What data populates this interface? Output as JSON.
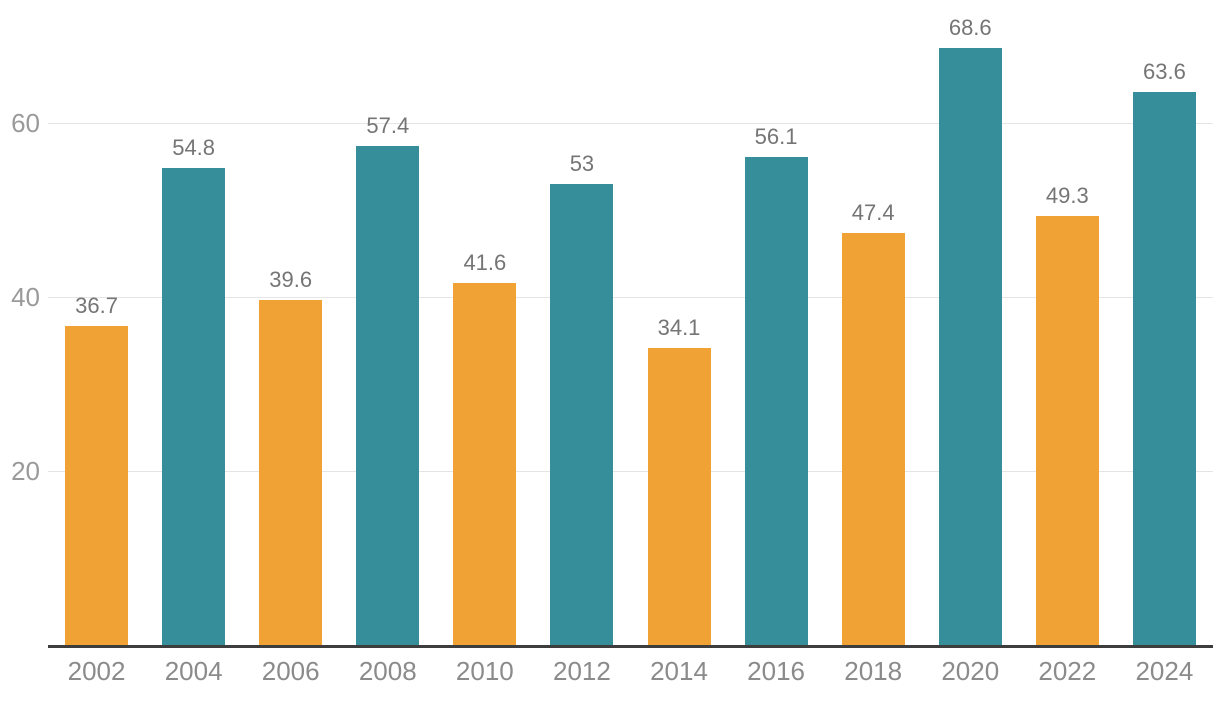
{
  "chart_data": {
    "type": "bar",
    "title": "",
    "xlabel": "",
    "ylabel": "",
    "categories": [
      "2002",
      "2004",
      "2006",
      "2008",
      "2010",
      "2012",
      "2014",
      "2016",
      "2018",
      "2020",
      "2022",
      "2024"
    ],
    "values": [
      36.7,
      54.8,
      39.6,
      57.4,
      41.6,
      53,
      34.1,
      56.1,
      47.4,
      68.6,
      49.3,
      63.6
    ],
    "value_labels": [
      "36.7",
      "54.8",
      "39.6",
      "57.4",
      "41.6",
      "53",
      "34.1",
      "56.1",
      "47.4",
      "68.6",
      "49.3",
      "63.6"
    ],
    "bar_colors": [
      "orange",
      "teal",
      "orange",
      "teal",
      "orange",
      "teal",
      "orange",
      "teal",
      "orange",
      "teal",
      "orange",
      "teal"
    ],
    "palette": {
      "orange": "#f0a235",
      "teal": "#358e9a"
    },
    "y_ticks": [
      20,
      40,
      60
    ],
    "y_tick_labels": [
      "20",
      "40",
      "60"
    ],
    "ylim": [
      0,
      74
    ],
    "grid": "horizontal",
    "legend": "none",
    "style_colors": {
      "gridline": "#e5e5e5",
      "axis_line": "#3d3d3d",
      "value_label_text": "#757575",
      "x_tick_text": "#8b8b8b",
      "y_tick_text": "#9a9a9a",
      "background": "#ffffff"
    }
  }
}
